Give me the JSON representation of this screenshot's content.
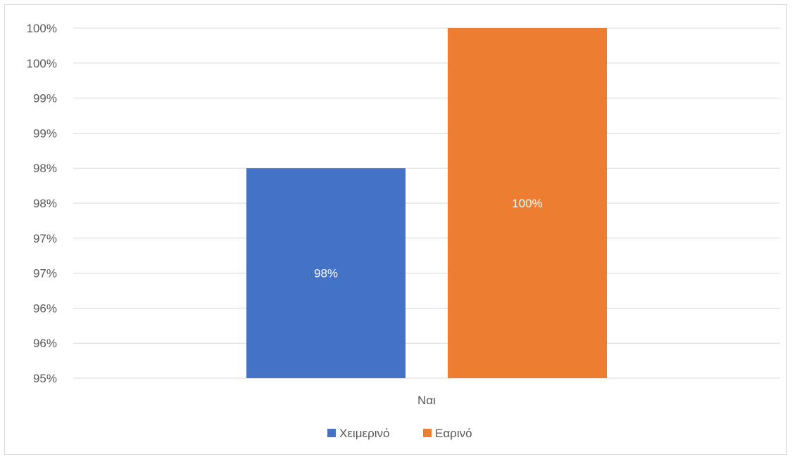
{
  "chart_data": {
    "type": "bar",
    "categories": [
      "Ναι"
    ],
    "series": [
      {
        "name": "Χειμερινό",
        "values": [
          0.98
        ],
        "label": "98%",
        "color": "#4472c4"
      },
      {
        "name": "Εαρινό",
        "values": [
          1.0
        ],
        "label": "100%",
        "color": "#ed7d31"
      }
    ],
    "ylim": [
      0.95,
      1.0
    ],
    "y_ticks": [
      "95%",
      "96%",
      "96%",
      "97%",
      "97%",
      "98%",
      "98%",
      "99%",
      "99%",
      "100%",
      "100%"
    ],
    "grid": true,
    "legend": "bottom",
    "gridline_color": "#d9d9d9"
  }
}
